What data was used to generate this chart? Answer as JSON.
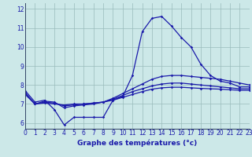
{
  "xlabel": "Graphe des températures (°c)",
  "background_color": "#cce8e8",
  "line_color": "#1a1aaa",
  "grid_color": "#99bbbb",
  "x": [
    0,
    1,
    2,
    3,
    4,
    5,
    6,
    7,
    8,
    9,
    10,
    11,
    12,
    13,
    14,
    15,
    16,
    17,
    18,
    19,
    20,
    21,
    22,
    23
  ],
  "line1": [
    7.7,
    7.1,
    7.2,
    6.7,
    5.9,
    6.3,
    6.3,
    6.3,
    6.3,
    7.2,
    7.4,
    8.5,
    10.8,
    11.5,
    11.6,
    11.1,
    10.5,
    10.0,
    9.1,
    8.5,
    8.2,
    8.1,
    7.9,
    7.9
  ],
  "line2": [
    7.6,
    7.0,
    7.15,
    7.1,
    6.8,
    6.9,
    6.95,
    7.0,
    7.1,
    7.3,
    7.55,
    7.8,
    8.05,
    8.3,
    8.45,
    8.5,
    8.5,
    8.45,
    8.4,
    8.35,
    8.3,
    8.2,
    8.1,
    8.0
  ],
  "line3": [
    7.55,
    7.0,
    7.1,
    7.05,
    6.9,
    6.95,
    7.0,
    7.05,
    7.1,
    7.25,
    7.45,
    7.65,
    7.8,
    7.95,
    8.05,
    8.1,
    8.1,
    8.05,
    8.0,
    7.95,
    7.9,
    7.85,
    7.8,
    7.8
  ],
  "line4": [
    7.5,
    7.0,
    7.05,
    7.0,
    6.95,
    7.0,
    7.0,
    7.05,
    7.1,
    7.2,
    7.35,
    7.5,
    7.65,
    7.78,
    7.85,
    7.88,
    7.88,
    7.85,
    7.82,
    7.8,
    7.78,
    7.75,
    7.72,
    7.72
  ],
  "xlim": [
    0,
    23
  ],
  "ylim": [
    5.7,
    12.3
  ],
  "yticks": [
    6,
    7,
    8,
    9,
    10,
    11,
    12
  ],
  "xticks": [
    0,
    1,
    2,
    3,
    4,
    5,
    6,
    7,
    8,
    9,
    10,
    11,
    12,
    13,
    14,
    15,
    16,
    17,
    18,
    19,
    20,
    21,
    22,
    23
  ],
  "tick_fontsize": 5.5,
  "xlabel_fontsize": 6.5
}
